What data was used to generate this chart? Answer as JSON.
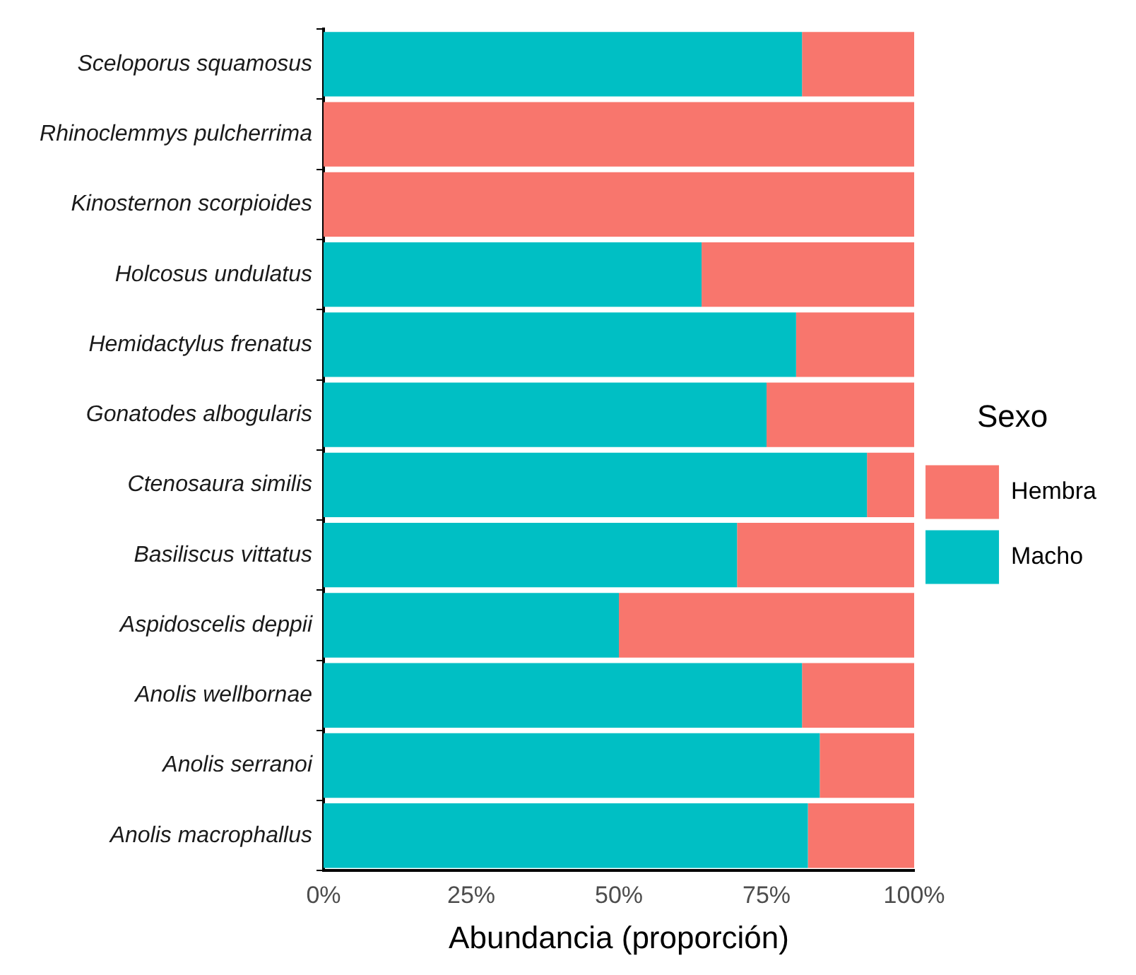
{
  "chart_data": {
    "type": "bar",
    "orientation": "horizontal",
    "stacked": true,
    "xlabel": "Abundancia (proporción)",
    "legend_title": "Sexo",
    "legend": "right",
    "grid": false,
    "categories": [
      "Sceloporus squamosus",
      "Rhinoclemmys pulcherrima",
      "Kinosternon scorpioides",
      "Holcosus undulatus",
      "Hemidactylus frenatus",
      "Gonatodes albogularis",
      "Ctenosaura similis",
      "Basiliscus vittatus",
      "Aspidoscelis deppii",
      "Anolis wellbornae",
      "Anolis serranoi",
      "Anolis macrophallus"
    ],
    "series": [
      {
        "name": "Macho",
        "color": "#00bfc4",
        "values": [
          81,
          0,
          0,
          64,
          80,
          75,
          92,
          70,
          50,
          81,
          84,
          82
        ]
      },
      {
        "name": "Hembra",
        "color": "#f8766d",
        "values": [
          19,
          100,
          100,
          36,
          20,
          25,
          8,
          30,
          50,
          19,
          16,
          18
        ]
      }
    ],
    "xlim": [
      0,
      100
    ],
    "xticks": [
      {
        "value": 0,
        "label": "0%"
      },
      {
        "value": 25,
        "label": "25%"
      },
      {
        "value": 50,
        "label": "50%"
      },
      {
        "value": 75,
        "label": "75%"
      },
      {
        "value": 100,
        "label": "100%"
      }
    ]
  }
}
